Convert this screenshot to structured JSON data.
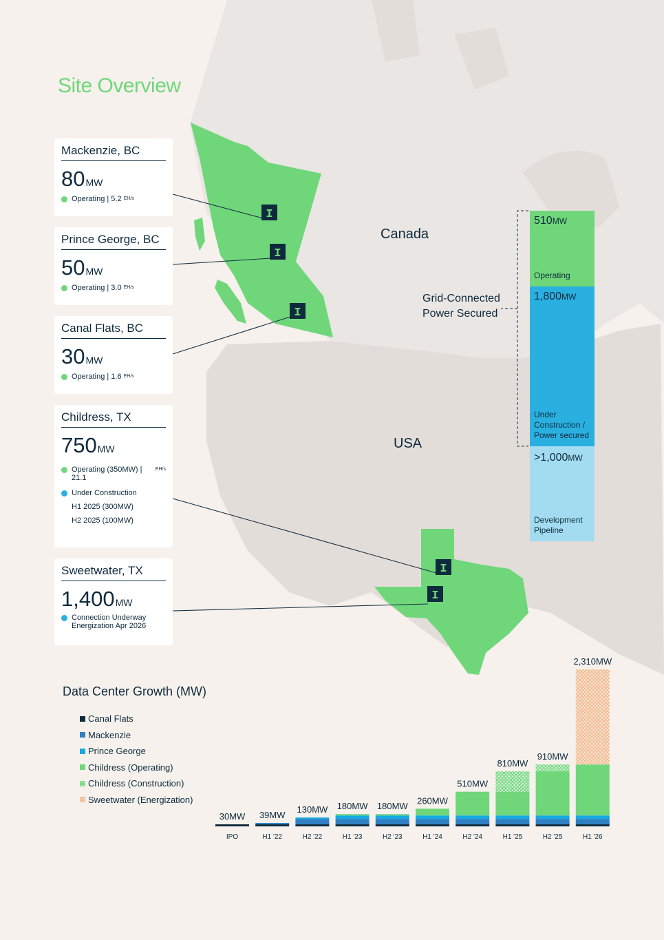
{
  "title": "Site Overview",
  "map": {
    "canada_label": "Canada",
    "usa_label": "USA",
    "marker_glyph": "I"
  },
  "sites": [
    {
      "name": "Mackenzie, BC",
      "mw": "80",
      "unit": "MW",
      "status": "Operating | 5.2",
      "status_unit": "EH/s"
    },
    {
      "name": "Prince George, BC",
      "mw": "50",
      "unit": "MW",
      "status": "Operating | 3.0",
      "status_unit": "EH/s"
    },
    {
      "name": "Canal Flats, BC",
      "mw": "30",
      "unit": "MW",
      "status": "Operating | 1.6",
      "status_unit": "EH/s"
    },
    {
      "name": "Childress, TX",
      "mw": "750",
      "unit": "MW",
      "status": "Operating (350MW) | 21.1",
      "status_unit": "EH/s",
      "status2": "Under Construction",
      "sub1": "H1 2025 (300MW)",
      "sub2": "H2 2025 (100MW)"
    },
    {
      "name": "Sweetwater, TX",
      "mw": "1,400",
      "unit": "MW",
      "status": "Connection Underway",
      "status_line2": "Energization Apr 2026"
    }
  ],
  "pipeline": {
    "operating_value": "510",
    "operating_unit": "MW",
    "operating_label": "Operating",
    "construction_value": "1,800",
    "construction_unit": "MW",
    "construction_label": "Under Construction / Power secured",
    "development_value": ">1,000",
    "development_unit": "MW",
    "development_label": "Development Pipeline",
    "bracket_label_1": "Grid-Connected",
    "bracket_label_2": "Power Secured"
  },
  "colors": {
    "green": "#6fd77a",
    "blue": "#2ab0e0",
    "lightblue": "#a3dcf0",
    "navy": "#0f2a3d",
    "mackenzie": "#2f7fc4",
    "peach": "#f2b98f",
    "title_green": "#6fd77a"
  },
  "chart_data": {
    "type": "bar",
    "title": "Data Center Growth (MW)",
    "stacked": true,
    "categories": [
      "IPO",
      "H1 '22",
      "H2 '22",
      "H1 '23",
      "H2 '23",
      "H1 '24",
      "H2 '24",
      "H1 '25",
      "H2 '25",
      "H1 '26"
    ],
    "totals": [
      "30MW",
      "39MW",
      "130MW",
      "180MW",
      "180MW",
      "260MW",
      "510MW",
      "810MW",
      "910MW",
      "2,310MW"
    ],
    "series": [
      {
        "name": "Canal Flats",
        "color": "#0f2a3d",
        "values": [
          30,
          30,
          30,
          30,
          30,
          30,
          30,
          30,
          30,
          30
        ]
      },
      {
        "name": "Mackenzie",
        "color": "#2f7fc4",
        "values": [
          0,
          9,
          80,
          80,
          80,
          80,
          80,
          80,
          80,
          80
        ]
      },
      {
        "name": "Prince George",
        "color": "#16a9e3",
        "values": [
          0,
          0,
          20,
          50,
          50,
          50,
          50,
          50,
          50,
          50
        ]
      },
      {
        "name": "Childress (Operating)",
        "color": "#6fd77a",
        "values": [
          0,
          0,
          0,
          20,
          20,
          100,
          350,
          350,
          650,
          750
        ]
      },
      {
        "name": "Childress (Construction)",
        "color": "#6fd77a",
        "pattern": "hatch",
        "values": [
          0,
          0,
          0,
          0,
          0,
          0,
          0,
          300,
          100,
          0
        ]
      },
      {
        "name": "Sweetwater (Energization)",
        "color": "#f2b98f",
        "pattern": "hatch",
        "values": [
          0,
          0,
          0,
          0,
          0,
          0,
          0,
          0,
          0,
          1400
        ]
      }
    ],
    "ylim": [
      0,
      2310
    ],
    "grid": false,
    "legend_position": "left"
  }
}
